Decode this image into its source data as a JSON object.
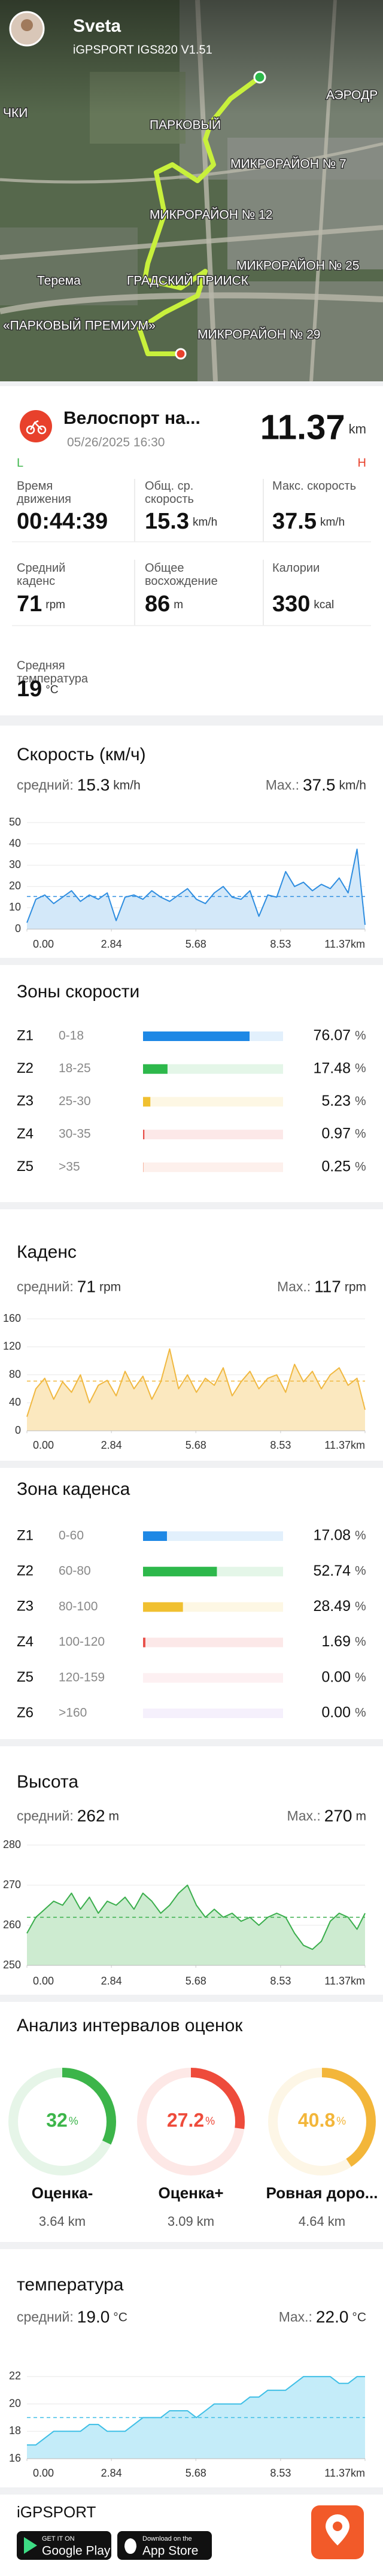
{
  "map": {
    "user": "Sveta",
    "device": "iGPSPORT IGS820 V1.51",
    "places": [
      "ЧКИ",
      "ПАРКОВЫЙ",
      "АЭРОДР",
      "МИКРОРАЙОН № 7",
      "МИКРОРАЙОН № 12",
      "МИКРОРАЙОН № 25",
      "Терема",
      "ГРАДСКИЙ ПРИИСК",
      "«ПАРКОВЫЙ ПРЕМИУМ»",
      "МИКРОРАЙОН № 29"
    ]
  },
  "activity": {
    "title": "Велоспорт на...",
    "date": "05/26/2025 16:30",
    "distance": 11.37,
    "distance_unit": "km",
    "low": "L",
    "high": "H"
  },
  "stats": [
    {
      "label": "Время движения",
      "value": "00:44:39"
    },
    {
      "label": "Общ. ср. скорость",
      "value": 15.3,
      "unit": "km/h"
    },
    {
      "label": "Макс. скорость",
      "value": 37.5,
      "unit": "km/h"
    },
    {
      "label": "Средний каденс",
      "value": 71,
      "unit": "rpm"
    },
    {
      "label": "Общее восхождение",
      "value": 86,
      "unit": "m"
    },
    {
      "label": "Калории",
      "value": 330,
      "unit": "kcal"
    },
    {
      "label": "Средняя температура",
      "value": 19,
      "unit": "°C"
    }
  ],
  "chart_data": [
    {
      "type": "line",
      "title": "Скорость (км/ч)",
      "avg_label": "средний:",
      "avg": 15.3,
      "max_label": "Max.:",
      "max": 37.5,
      "unit": "km/h",
      "color": "#2e8de0",
      "fill": "#d3e8f9",
      "x": [
        0,
        0.3,
        0.6,
        0.9,
        1.2,
        1.5,
        1.8,
        2.1,
        2.4,
        2.7,
        3,
        3.3,
        3.6,
        3.9,
        4.2,
        4.5,
        4.8,
        5.1,
        5.4,
        5.7,
        6,
        6.3,
        6.6,
        6.9,
        7.2,
        7.5,
        7.8,
        8.1,
        8.4,
        8.7,
        9,
        9.3,
        9.6,
        9.9,
        10.2,
        10.5,
        10.8,
        11.1,
        11.37
      ],
      "values": [
        3,
        14,
        16,
        12,
        15,
        18,
        13,
        16,
        14,
        17,
        4,
        15,
        16,
        14,
        18,
        15,
        13,
        16,
        19,
        14,
        12,
        17,
        20,
        15,
        14,
        18,
        6,
        16,
        15,
        27,
        20,
        22,
        18,
        21,
        19,
        24,
        17,
        37.5,
        2
      ],
      "xlim": [
        0,
        11.37
      ],
      "xticks": [
        {
          "value": 0,
          "label": "0.00"
        },
        2.84,
        5.68,
        8.53,
        {
          "value": 11.37,
          "label": "11.37km"
        }
      ],
      "ylim": [
        0,
        50
      ],
      "yticks": [
        0,
        10,
        20,
        30,
        40,
        50
      ],
      "grid": true
    },
    {
      "type": "hbar",
      "title": "Зоны скорости",
      "categories": [
        "Z1",
        "Z2",
        "Z3",
        "Z4",
        "Z5"
      ],
      "ranges": [
        "0-18",
        "18-25",
        "25-30",
        "30-35",
        ">35"
      ],
      "values": [
        76.07,
        17.48,
        5.23,
        0.97,
        0.25
      ],
      "unit": "%",
      "colors": [
        "#1e88e5",
        "#2db84b",
        "#f0c030",
        "#e8504a",
        "#f08a6a"
      ],
      "xlim": [
        0,
        100
      ]
    },
    {
      "type": "line",
      "title": "Каденс",
      "avg_label": "средний:",
      "avg": 71,
      "max_label": "Max.:",
      "max": 117,
      "unit": "rpm",
      "color": "#f0b840",
      "fill": "#fbe8bf",
      "x": [
        0,
        0.3,
        0.6,
        0.9,
        1.2,
        1.5,
        1.8,
        2.1,
        2.4,
        2.7,
        3,
        3.3,
        3.6,
        3.9,
        4.2,
        4.5,
        4.8,
        5.1,
        5.4,
        5.7,
        6,
        6.3,
        6.6,
        6.9,
        7.2,
        7.5,
        7.8,
        8.1,
        8.4,
        8.7,
        9,
        9.3,
        9.6,
        9.9,
        10.2,
        10.5,
        10.8,
        11.1,
        11.37
      ],
      "values": [
        20,
        60,
        75,
        45,
        70,
        55,
        80,
        40,
        65,
        72,
        50,
        85,
        60,
        78,
        45,
        70,
        117,
        60,
        80,
        55,
        75,
        65,
        90,
        50,
        70,
        85,
        60,
        75,
        80,
        55,
        95,
        70,
        85,
        60,
        80,
        90,
        65,
        75,
        30
      ],
      "xlim": [
        0,
        11.37
      ],
      "xticks": [
        {
          "value": 0,
          "label": "0.00"
        },
        2.84,
        5.68,
        8.53,
        {
          "value": 11.37,
          "label": "11.37km"
        }
      ],
      "ylim": [
        0,
        160
      ],
      "yticks": [
        0,
        40,
        80,
        120,
        160
      ],
      "grid": true
    },
    {
      "type": "hbar",
      "title": "Зона каденса",
      "categories": [
        "Z1",
        "Z2",
        "Z3",
        "Z4",
        "Z5",
        "Z6"
      ],
      "ranges": [
        "0-60",
        "60-80",
        "80-100",
        "100-120",
        "120-159",
        ">160"
      ],
      "values": [
        17.08,
        52.74,
        28.49,
        1.69,
        0,
        0
      ],
      "value_labels": [
        "17.08",
        "52.74",
        "28.49",
        "1.69",
        "0.00",
        "0.00"
      ],
      "unit": "%",
      "colors": [
        "#1e88e5",
        "#2db84b",
        "#f0c030",
        "#e8504a",
        "#f08a9a",
        "#b58ae8"
      ],
      "xlim": [
        0,
        100
      ]
    },
    {
      "type": "line",
      "title": "Высота",
      "avg_label": "средний:",
      "avg": 262,
      "max_label": "Max.:",
      "max": 270,
      "unit": "m",
      "color": "#3aae4c",
      "fill": "#cdebd0",
      "x": [
        0,
        0.3,
        0.6,
        0.9,
        1.2,
        1.5,
        1.8,
        2.1,
        2.4,
        2.7,
        3,
        3.3,
        3.6,
        3.9,
        4.2,
        4.5,
        4.8,
        5.1,
        5.4,
        5.7,
        6,
        6.3,
        6.6,
        6.9,
        7.2,
        7.5,
        7.8,
        8.1,
        8.4,
        8.7,
        9,
        9.3,
        9.6,
        9.9,
        10.2,
        10.5,
        10.8,
        11.1,
        11.37
      ],
      "values": [
        258,
        262,
        264,
        266,
        265,
        268,
        264,
        267,
        263,
        266,
        265,
        267,
        264,
        268,
        266,
        263,
        265,
        268,
        270,
        265,
        262,
        264,
        262,
        263,
        261,
        262,
        260,
        262,
        263,
        262,
        258,
        255,
        254,
        256,
        261,
        263,
        262,
        259,
        263
      ],
      "xlim": [
        0,
        11.37
      ],
      "xticks": [
        {
          "value": 0,
          "label": "0.00"
        },
        2.84,
        5.68,
        8.53,
        {
          "value": 11.37,
          "label": "11.37km"
        }
      ],
      "ylim": [
        250,
        280
      ],
      "yticks": [
        250,
        260,
        270,
        280
      ],
      "grid": true
    },
    {
      "type": "donut",
      "title": "Анализ интервалов оценок",
      "categories": [
        "Оценка-",
        "Оценка+",
        "Ровная доро..."
      ],
      "values": [
        32,
        27.2,
        40.8
      ],
      "unit": "%",
      "distances": [
        3.64,
        3.09,
        4.64
      ],
      "distance_unit": "km",
      "colors": [
        "#3cb54a",
        "#ee4b3b",
        "#f3b63a"
      ]
    },
    {
      "type": "line",
      "title": "температура",
      "avg_label": "средний:",
      "avg": {
        "value": 19,
        "label": "19.0"
      },
      "max_label": "Max.:",
      "max": {
        "value": 22,
        "label": "22.0"
      },
      "unit": "°C",
      "color": "#3fbfe6",
      "fill": "#c4ecf9",
      "x": [
        0,
        0.3,
        0.6,
        0.9,
        1.2,
        1.5,
        1.8,
        2.1,
        2.4,
        2.7,
        3,
        3.3,
        3.6,
        3.9,
        4.2,
        4.5,
        4.8,
        5.1,
        5.4,
        5.7,
        6,
        6.3,
        6.6,
        6.9,
        7.2,
        7.5,
        7.8,
        8.1,
        8.4,
        8.7,
        9,
        9.3,
        9.6,
        9.9,
        10.2,
        10.5,
        10.8,
        11.1,
        11.37
      ],
      "values": [
        17,
        17,
        17.5,
        18,
        18,
        18,
        18,
        18.5,
        18.5,
        18,
        18,
        18,
        18.5,
        19,
        19,
        19,
        19.5,
        19.5,
        19.5,
        19,
        19.5,
        20,
        20,
        20,
        20,
        20.5,
        20.5,
        21,
        21,
        21,
        21.5,
        22,
        22,
        22,
        22,
        21.5,
        21.5,
        22,
        22
      ],
      "xlim": [
        0,
        11.37
      ],
      "xticks": [
        {
          "value": 0,
          "label": "0.00"
        },
        2.84,
        5.68,
        8.53,
        {
          "value": 11.37,
          "label": "11.37km"
        }
      ],
      "ylim": [
        16,
        23
      ],
      "yticks": [
        16,
        18,
        20,
        22
      ],
      "grid": true
    }
  ],
  "footer": {
    "brand": "iGPSPORT",
    "google_small": "GET IT ON",
    "google": "Google Play",
    "apple_small": "Download on the",
    "apple": "App Store"
  }
}
